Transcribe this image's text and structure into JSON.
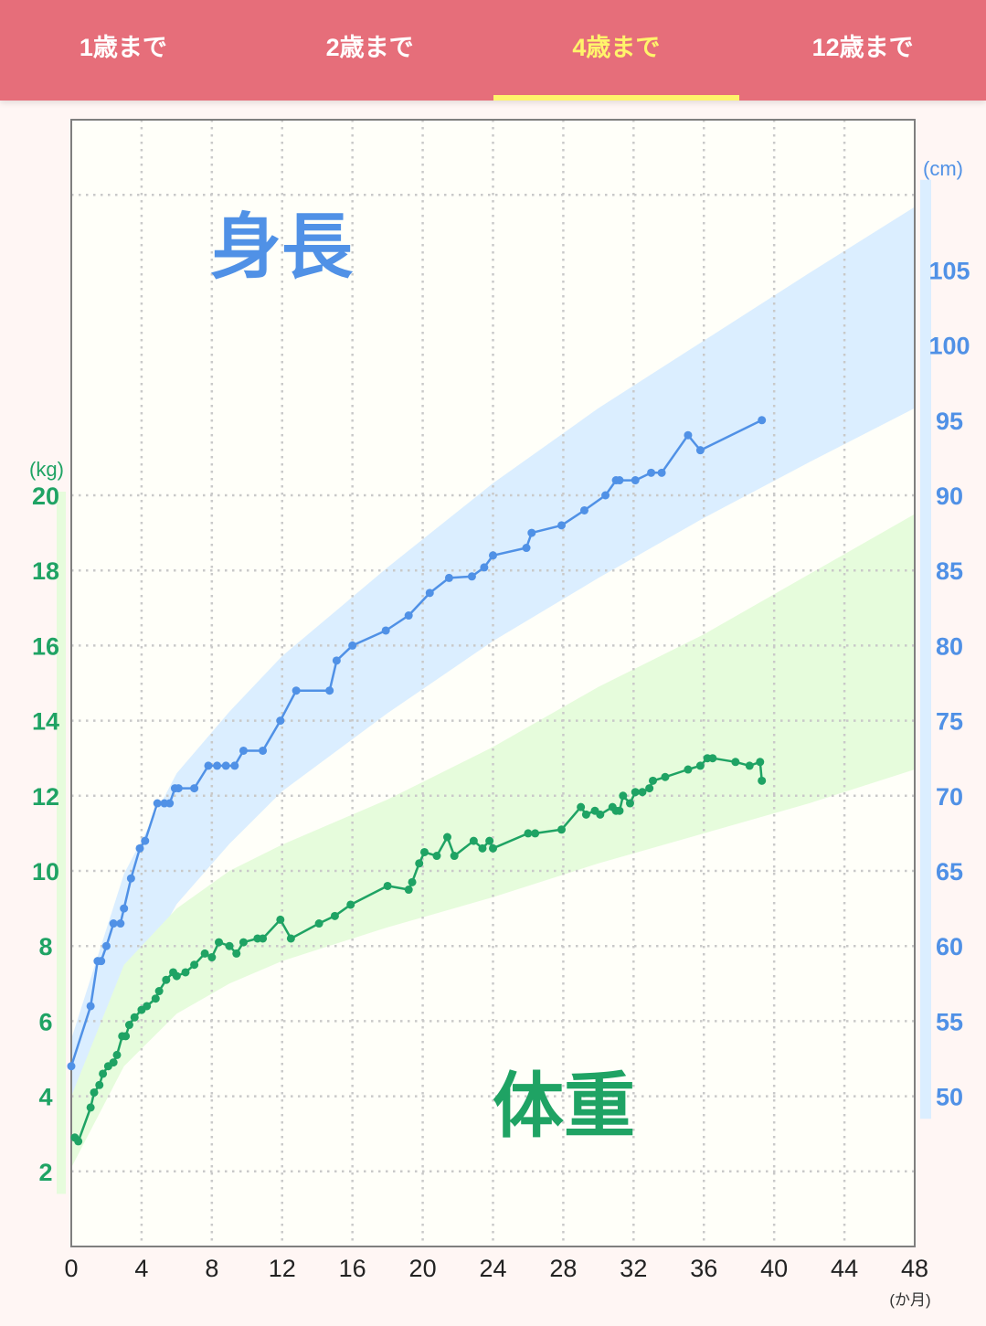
{
  "tabs": [
    {
      "label": "1歳まで",
      "active": false
    },
    {
      "label": "2歳まで",
      "active": false
    },
    {
      "label": "4歳まで",
      "active": true
    },
    {
      "label": "12歳まで",
      "active": false
    }
  ],
  "colors": {
    "header": "#e66e7a",
    "active_tab": "#fff46b",
    "height": "#5091e6",
    "weight": "#1fa364",
    "height_band": "#dbeeff",
    "weight_band": "#e6fcdc",
    "plot_bg": "#fffff9"
  },
  "chart_data": {
    "type": "line",
    "title": "",
    "grid": true,
    "x_axis": {
      "label": "(か月)",
      "range": [
        0,
        48
      ],
      "ticks": [
        "0",
        "4",
        "8",
        "12",
        "16",
        "20",
        "24",
        "28",
        "32",
        "36",
        "40",
        "44",
        "48"
      ]
    },
    "height_axis": {
      "label": "(cm)",
      "side": "right",
      "range": [
        40,
        115
      ],
      "ticks": [
        "50",
        "55",
        "60",
        "65",
        "70",
        "75",
        "80",
        "85",
        "90",
        "95",
        "100",
        "105"
      ]
    },
    "weight_axis": {
      "label": "(kg)",
      "side": "left",
      "range": [
        0,
        30
      ],
      "ticks": [
        "2",
        "4",
        "6",
        "8",
        "10",
        "12",
        "14",
        "16",
        "18",
        "20"
      ]
    },
    "annotations": [
      {
        "text": "身長",
        "series": "height"
      },
      {
        "text": "体重",
        "series": "weight"
      }
    ],
    "height_band": {
      "x": [
        0,
        3,
        6,
        9,
        12,
        18,
        24,
        30,
        36,
        42,
        48
      ],
      "lower": [
        45.5,
        56.5,
        62.8,
        66.8,
        70.3,
        75.5,
        80.3,
        84.5,
        88.5,
        92.2,
        95.8
      ],
      "upper": [
        53.8,
        64.8,
        71.5,
        75.6,
        79.3,
        85.2,
        90.8,
        95.8,
        100.3,
        104.8,
        109.2
      ]
    },
    "weight_band": {
      "x": [
        0,
        3,
        6,
        9,
        12,
        18,
        24,
        30,
        36,
        42,
        48
      ],
      "lower": [
        2.1,
        4.8,
        6.2,
        7.0,
        7.6,
        8.5,
        9.3,
        10.2,
        11.0,
        11.8,
        12.7
      ],
      "upper": [
        4.0,
        7.5,
        9.0,
        10.0,
        10.7,
        11.9,
        13.3,
        14.9,
        16.3,
        17.9,
        19.5
      ]
    },
    "series": [
      {
        "key": "height",
        "x": [
          0,
          1.1,
          1.5,
          1.7,
          2.0,
          2.4,
          2.8,
          3.0,
          3.4,
          3.9,
          4.2,
          4.9,
          5.3,
          5.6,
          5.9,
          6.1,
          7.0,
          7.8,
          8.3,
          8.8,
          9.3,
          9.8,
          10.9,
          11.9,
          12.8,
          14.7,
          15.1,
          16.0,
          17.9,
          19.2,
          20.4,
          21.5,
          22.8,
          23.5,
          24.0,
          25.9,
          26.2,
          27.9,
          29.2,
          30.4,
          31.0,
          31.2,
          32.1,
          33.0,
          33.6,
          35.1,
          35.8,
          39.3
        ],
        "y": [
          52.0,
          56.0,
          59.0,
          59.0,
          60.0,
          61.5,
          61.5,
          62.5,
          64.5,
          66.5,
          67.0,
          69.5,
          69.5,
          69.5,
          70.5,
          70.5,
          70.5,
          72.0,
          72.0,
          72.0,
          72.0,
          73.0,
          73.0,
          75.0,
          77.0,
          77.0,
          79.0,
          80.0,
          81.0,
          82.0,
          83.5,
          84.5,
          84.6,
          85.2,
          86.0,
          86.5,
          87.5,
          88.0,
          89.0,
          90.0,
          91.0,
          91.0,
          91.0,
          91.5,
          91.5,
          94.0,
          93.0,
          95.0
        ]
      },
      {
        "key": "weight",
        "x": [
          0.2,
          0.4,
          1.1,
          1.3,
          1.6,
          1.8,
          2.1,
          2.4,
          2.6,
          2.9,
          3.1,
          3.3,
          3.6,
          4.0,
          4.3,
          4.8,
          5.0,
          5.4,
          5.8,
          6.0,
          6.5,
          7.0,
          7.6,
          8.0,
          8.4,
          9.0,
          9.4,
          9.8,
          10.6,
          10.9,
          11.9,
          12.5,
          14.1,
          15.0,
          15.9,
          18.0,
          19.2,
          19.4,
          19.8,
          20.1,
          20.8,
          21.4,
          21.8,
          22.9,
          23.4,
          23.8,
          24.0,
          26.0,
          26.4,
          27.9,
          29.0,
          29.3,
          29.8,
          30.1,
          30.8,
          31.0,
          31.2,
          31.4,
          31.8,
          32.1,
          32.5,
          32.9,
          33.1,
          33.8,
          35.1,
          35.8,
          36.2,
          36.5,
          37.8,
          38.6,
          39.2,
          39.3
        ],
        "y": [
          2.9,
          2.8,
          3.7,
          4.1,
          4.3,
          4.6,
          4.8,
          4.9,
          5.1,
          5.6,
          5.6,
          5.9,
          6.1,
          6.3,
          6.4,
          6.6,
          6.8,
          7.1,
          7.3,
          7.2,
          7.3,
          7.5,
          7.8,
          7.7,
          8.1,
          8.0,
          7.8,
          8.1,
          8.2,
          8.2,
          8.7,
          8.2,
          8.6,
          8.8,
          9.1,
          9.6,
          9.5,
          9.7,
          10.2,
          10.5,
          10.4,
          10.9,
          10.4,
          10.8,
          10.6,
          10.8,
          10.6,
          11.0,
          11.0,
          11.1,
          11.7,
          11.5,
          11.6,
          11.5,
          11.7,
          11.6,
          11.6,
          12.0,
          11.8,
          12.1,
          12.1,
          12.2,
          12.4,
          12.5,
          12.7,
          12.8,
          13.0,
          13.0,
          12.9,
          12.8,
          12.9,
          12.4
        ]
      }
    ]
  }
}
